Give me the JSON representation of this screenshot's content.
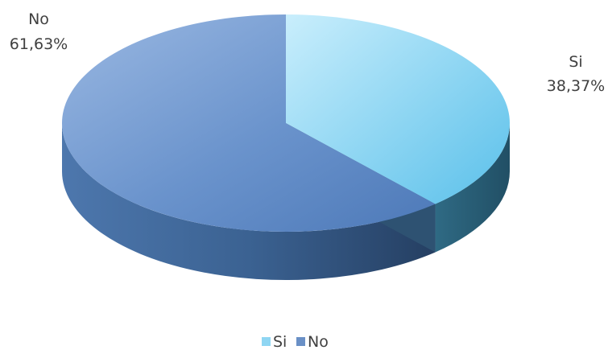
{
  "chart_data": {
    "type": "pie",
    "style": "3d",
    "categories": [
      "Si",
      "No"
    ],
    "values": [
      38.37,
      61.63
    ],
    "value_labels": [
      "38,37%",
      "61,63%"
    ],
    "colors": {
      "Si": {
        "top": "#9fdcf5",
        "side": "#3f7f9a"
      },
      "No": {
        "top": "#6f98cf",
        "side": "#3a5f8f"
      }
    },
    "title": "",
    "legend_position": "bottom"
  }
}
